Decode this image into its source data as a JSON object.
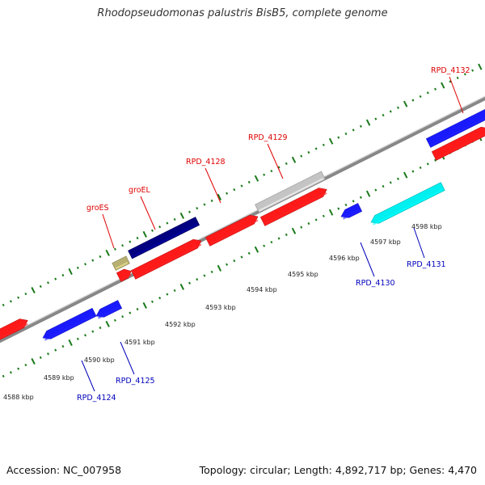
{
  "title": "Rhodopseudomonas palustris BisB5, complete genome",
  "footer": {
    "accession": "Accession: NC_007958",
    "summary": "Topology: circular; Length: 4,892,717 bp; Genes: 4,470"
  },
  "colors": {
    "red": "#ff1a1a",
    "blue": "#1a1aff",
    "navy": "#000080",
    "cyan": "#00f0f0",
    "khaki": "#b8b070",
    "gray": "#c4c4c4",
    "backbone": "#888888",
    "tick": "#1a7a1a",
    "label_red": "#dd0000",
    "label_blue": "#0000bb"
  },
  "kbp_labels": [
    "4588 kbp",
    "4589 kbp",
    "4590 kbp",
    "4591 kbp",
    "4592 kbp",
    "4593 kbp",
    "4594 kbp",
    "4595 kbp",
    "4596 kbp",
    "4597 kbp",
    "4598 kbp"
  ],
  "genes": [
    {
      "track": "fwd",
      "color": "red"
    },
    {
      "track": "fwd",
      "color": "red"
    },
    {
      "track": "fwd",
      "color": "red"
    },
    {
      "track": "fwd",
      "color": "red"
    },
    {
      "track": "fwd",
      "color": "red"
    },
    {
      "track": "fwd",
      "color": "red"
    },
    {
      "track": "fwd2",
      "color": "khaki"
    },
    {
      "track": "fwd2",
      "color": "navy"
    },
    {
      "track": "fwd2",
      "color": "gray"
    },
    {
      "track": "rev",
      "color": "blue"
    },
    {
      "track": "rev",
      "color": "blue"
    },
    {
      "track": "rev",
      "color": "blue"
    },
    {
      "track": "rev",
      "color": "blue"
    },
    {
      "track": "rev2",
      "color": "cyan"
    }
  ],
  "gene_labels": [
    {
      "text": "groES",
      "color": "label_red"
    },
    {
      "text": "groEL",
      "color": "label_red"
    },
    {
      "text": "RPD_4128",
      "color": "label_red"
    },
    {
      "text": "RPD_4129",
      "color": "label_red"
    },
    {
      "text": "RPD_4132",
      "color": "label_red"
    },
    {
      "text": "RPD_4124",
      "color": "label_blue"
    },
    {
      "text": "RPD_4125",
      "color": "label_blue"
    },
    {
      "text": "RPD_4130",
      "color": "label_blue"
    },
    {
      "text": "RPD_4131",
      "color": "label_blue"
    }
  ]
}
